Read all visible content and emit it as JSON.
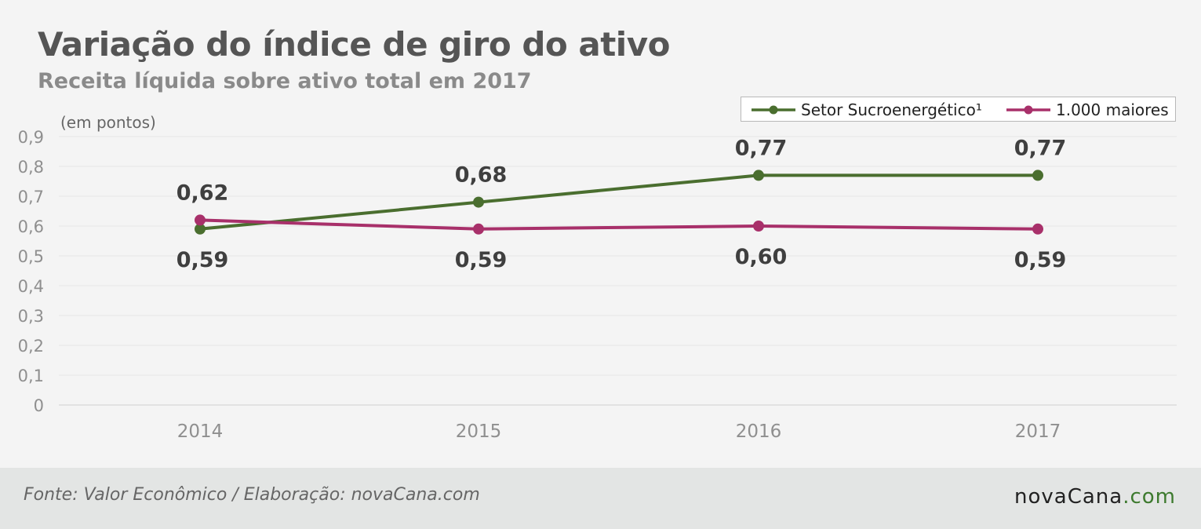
{
  "header": {
    "title": "Variação do índice de giro do ativo",
    "subtitle": "Receita líquida sobre ativo total em 2017"
  },
  "chart_data": {
    "type": "line",
    "ylabel": "(em pontos)",
    "categories": [
      "2014",
      "2015",
      "2016",
      "2017"
    ],
    "yticks": [
      "0",
      "0,1",
      "0,2",
      "0,3",
      "0,4",
      "0,5",
      "0,6",
      "0,7",
      "0,8",
      "0,9"
    ],
    "ylim": [
      0,
      0.9
    ],
    "grid": true,
    "legend_position": "top-right",
    "series": [
      {
        "name": "Setor Sucroenergético¹",
        "color": "#4a6e2f",
        "values": [
          0.59,
          0.68,
          0.77,
          0.77
        ],
        "labels": [
          "0,59",
          "0,68",
          "0,77",
          "0,77"
        ],
        "label_positions": [
          "below",
          "above",
          "above",
          "above"
        ]
      },
      {
        "name": "1.000 maiores",
        "color": "#a8306a",
        "values": [
          0.62,
          0.59,
          0.6,
          0.59
        ],
        "labels": [
          "0,62",
          "0,59",
          "0,60",
          "0,59"
        ],
        "label_positions": [
          "above",
          "below",
          "below",
          "below"
        ]
      }
    ]
  },
  "footer": {
    "source": "Fonte: Valor Econômico / Elaboração: novaCana.com",
    "brand_name": "novaCana",
    "brand_suffix": ".com"
  }
}
